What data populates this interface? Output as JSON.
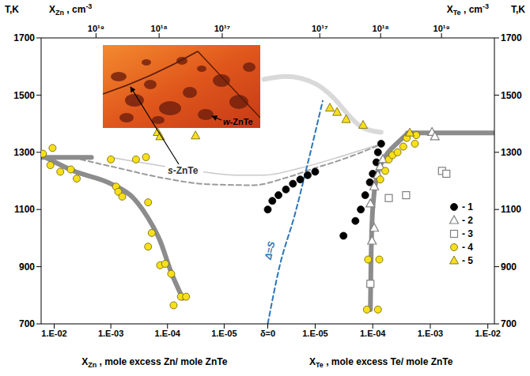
{
  "chart_data": {
    "type": "scatter",
    "log": "x",
    "grid": false,
    "legend": "right",
    "y_label": "T,K",
    "ylim": [
      700,
      1700
    ],
    "yticks": [
      700,
      900,
      1100,
      1300,
      1500,
      1700
    ],
    "x_zn": {
      "label": [
        "X",
        "Zn",
        " , mole excess Zn/ mole ZnTe"
      ],
      "xlim": [
        0.017,
        1.7e-06
      ],
      "xticks": [
        {
          "value": 0.01,
          "label": "1.E-02"
        },
        {
          "value": 0.001,
          "label": "1.E-03"
        },
        {
          "value": 0.0001,
          "label": "1.E-04"
        },
        {
          "value": 1e-05,
          "label": "1.E-05"
        }
      ]
    },
    "x_te": {
      "label": [
        "X",
        "Te",
        " , mole excess Te/ mole ZnTe"
      ],
      "xlim": [
        1.5e-06,
        0.013
      ],
      "xticks": [
        {
          "value": 1e-05,
          "label": "1.E-05"
        },
        {
          "value": 0.0001,
          "label": "1.E-04"
        },
        {
          "value": 0.001,
          "label": "1.E-03"
        },
        {
          "value": 0.01,
          "label": "1.E-02"
        }
      ]
    },
    "x_center_label": "δ=0",
    "top_zn": {
      "label": [
        "X",
        "Zn",
        " , cm",
        "-3"
      ],
      "xlim": [
        7.4e+19,
        1.9e+16
      ],
      "xticks": [
        {
          "value": 1e+19,
          "label": "10¹⁹"
        },
        {
          "value": 1e+18,
          "label": "10¹⁸"
        },
        {
          "value": 1e+17,
          "label": "10¹⁷"
        }
      ]
    },
    "top_te": {
      "label": [
        "X",
        "Te",
        " , cm",
        "-3"
      ],
      "xlim": [
        1.4e+16,
        7.4e+19
      ],
      "xticks": [
        {
          "value": 1e+17,
          "label": "10¹⁷"
        },
        {
          "value": 1e+18,
          "label": "10¹⁸"
        },
        {
          "value": 1e+19,
          "label": "10¹⁹"
        }
      ]
    },
    "annotations": {
      "delta_s": "Δ=S",
      "w_phase": "w-ZnTe",
      "s_phase": "s-ZnTe"
    },
    "series": [
      {
        "name": "- 1",
        "type": "scatter",
        "marker": "circle",
        "color": "#000000",
        "side": "Te",
        "x": [
          1.5e-06,
          1.8e-06,
          2.3e-06,
          3.1e-06,
          4.1e-06,
          5.5e-06,
          7.4e-06,
          1e-05,
          3.1e-05,
          5e-05,
          6.2e-05,
          7.4e-05,
          8.9e-05,
          0.0001,
          0.000116,
          0.000123,
          0.00014
        ],
        "y": [
          1100,
          1130,
          1150,
          1170,
          1190,
          1205,
          1220,
          1232,
          1008,
          1060,
          1100,
          1150,
          1195,
          1225,
          1265,
          1300,
          1330
        ]
      },
      {
        "name": "- 2",
        "type": "scatter",
        "marker": "open_triangle",
        "color": "#808080",
        "side": "Te",
        "x": [
          9.7e-05,
          0.000106,
          9.1e-05,
          0.000106,
          0.000123,
          0.000135,
          0.00015,
          0.00107,
          0.0012
        ],
        "y": [
          990,
          1035,
          1120,
          1180,
          1220,
          1250,
          1275,
          1370,
          1355
        ]
      },
      {
        "name": "- 3",
        "type": "scatter",
        "marker": "open_square",
        "color": "#808080",
        "side": "Te",
        "x": [
          9.1e-05,
          0.00019,
          0.00038,
          0.0016,
          0.0019
        ],
        "y": [
          840,
          1140,
          1150,
          1235,
          1225
        ]
      },
      {
        "name": "- 4",
        "type": "scatter",
        "marker": "circle",
        "color": "#f7e01a",
        "side": [
          "Zn",
          "Zn",
          "Zn",
          "Zn",
          "Zn",
          "Zn",
          "Zn",
          "Zn",
          "Zn",
          "Zn",
          "Zn",
          "Zn",
          "Zn",
          "Zn",
          "Zn",
          "Zn",
          "Zn",
          "Zn",
          "Zn",
          "Zn",
          "Zn",
          "Te",
          "Te",
          "Te",
          "Te",
          "Te",
          "Te",
          "Te",
          "Te",
          "Te",
          "Te",
          "Te",
          "Te",
          "Te"
        ],
        "x": [
          0.0158,
          0.0107,
          0.0117,
          0.0078,
          0.0051,
          0.004,
          0.001,
          0.00036,
          0.00024,
          0.00081,
          0.00074,
          0.00063,
          0.00022,
          0.00019,
          0.00022,
          0.000135,
          0.00011,
          8.6e-05,
          7.8e-05,
          5.8e-05,
          4.7e-05,
          7.9e-05,
          0.000123,
          8.3e-05,
          0.00013,
          0.000135,
          0.000165,
          0.00019,
          0.00022,
          0.00027,
          0.00034,
          0.00039,
          0.00054,
          0.00057
        ],
        "y": [
          1295,
          1315,
          1255,
          1232,
          1240,
          1208,
          1275,
          1275,
          1283,
          1180,
          1162,
          1145,
          1125,
          1018,
          970,
          905,
          910,
          875,
          765,
          795,
          795,
          750,
          750,
          925,
          925,
          1205,
          1235,
          1275,
          1290,
          1300,
          1320,
          1350,
          1330,
          1360
        ]
      },
      {
        "name": "- 5",
        "type": "scatter",
        "marker": "triangle",
        "color": "#f7e01a",
        "side": [
          "Zn",
          "Zn",
          "Zn",
          "Te",
          "Te",
          "Te",
          "Te",
          "Te"
        ],
        "x": [
          0.00015,
          0.000135,
          3.2e-05,
          1.8e-05,
          2.4e-05,
          3.45e-05,
          6.8e-05,
          0.00044
        ],
        "y": [
          1370,
          1355,
          1358,
          1455,
          1440,
          1415,
          1395,
          1368
        ]
      },
      {
        "type": "line",
        "line_style": "solid",
        "color": "#c8c8c8",
        "side": [
          "Zn",
          "Zn",
          "Zn",
          "Zn",
          "Te",
          "Te",
          "Te"
        ],
        "x": [
          0.001,
          4.7e-05,
          5.4e-06,
          2e-06,
          5.5e-06,
          3.3e-05,
          0.00012
        ],
        "y": [
          1282,
          1240,
          1220,
          1220,
          1245,
          1290,
          1325
        ]
      },
      {
        "type": "line",
        "line_style": "thick",
        "color": "#d9d9d9",
        "side": [
          "Zn",
          "Te",
          "Te",
          "Te",
          "Te",
          "Te",
          "Te"
        ],
        "x": [
          2e-06,
          3.1e-06,
          1e-05,
          2.1e-05,
          3.8e-05,
          6.8e-05,
          0.00014
        ],
        "y": [
          1555,
          1565,
          1540,
          1490,
          1430,
          1385,
          1370
        ]
      },
      {
        "type": "line",
        "line_style": "dashed",
        "color": "#9a9a9a",
        "side": [
          "Zn",
          "Zn",
          "Zn",
          "Zn",
          "Zn",
          "Te",
          "Te",
          "Te",
          "Te",
          "Te"
        ],
        "x": [
          0.0034,
          0.00074,
          0.00012,
          1.85e-05,
          3e-06,
          3e-06,
          1e-05,
          2.5e-05,
          5.5e-05,
          0.00013
        ],
        "y": [
          1275,
          1245,
          1210,
          1188,
          1185,
          1210,
          1245,
          1270,
          1295,
          1325
        ]
      },
      {
        "type": "line",
        "line_style": "thick",
        "color": "#8c8c8c",
        "side": "Zn",
        "x": [
          0.017,
          0.0022
        ],
        "y": [
          1282,
          1282
        ]
      },
      {
        "type": "line",
        "line_style": "thick",
        "color": "#8c8c8c",
        "side": "Zn",
        "x": [
          0.015,
          0.0046,
          0.001,
          0.0004,
          0.00022,
          0.000135,
          8.6e-05,
          5.4e-05
        ],
        "y": [
          1285,
          1235,
          1190,
          1140,
          1070,
          990,
          880,
          790
        ]
      },
      {
        "type": "line",
        "line_style": "thick",
        "color": "#8c8c8c",
        "side": "Te",
        "x": [
          0.0004,
          0.013
        ],
        "y": [
          1368,
          1368
        ]
      },
      {
        "type": "line",
        "line_style": "thick",
        "color": "#8c8c8c",
        "side": "Te",
        "x": [
          9.1e-05,
          9.3e-05,
          9.7e-05,
          0.000105,
          0.00012,
          0.00016,
          0.00026,
          0.0004
        ],
        "y": [
          750,
          900,
          1050,
          1150,
          1220,
          1280,
          1330,
          1365
        ]
      },
      {
        "type": "line",
        "line_style": "dashed",
        "color": "#2e75b6",
        "side": "Te",
        "x": [
          1.5e-06,
          2.4e-06,
          4.4e-06,
          7.4e-06,
          1.35e-05
        ],
        "y": [
          700,
          900,
          1080,
          1260,
          1480
        ]
      }
    ]
  }
}
